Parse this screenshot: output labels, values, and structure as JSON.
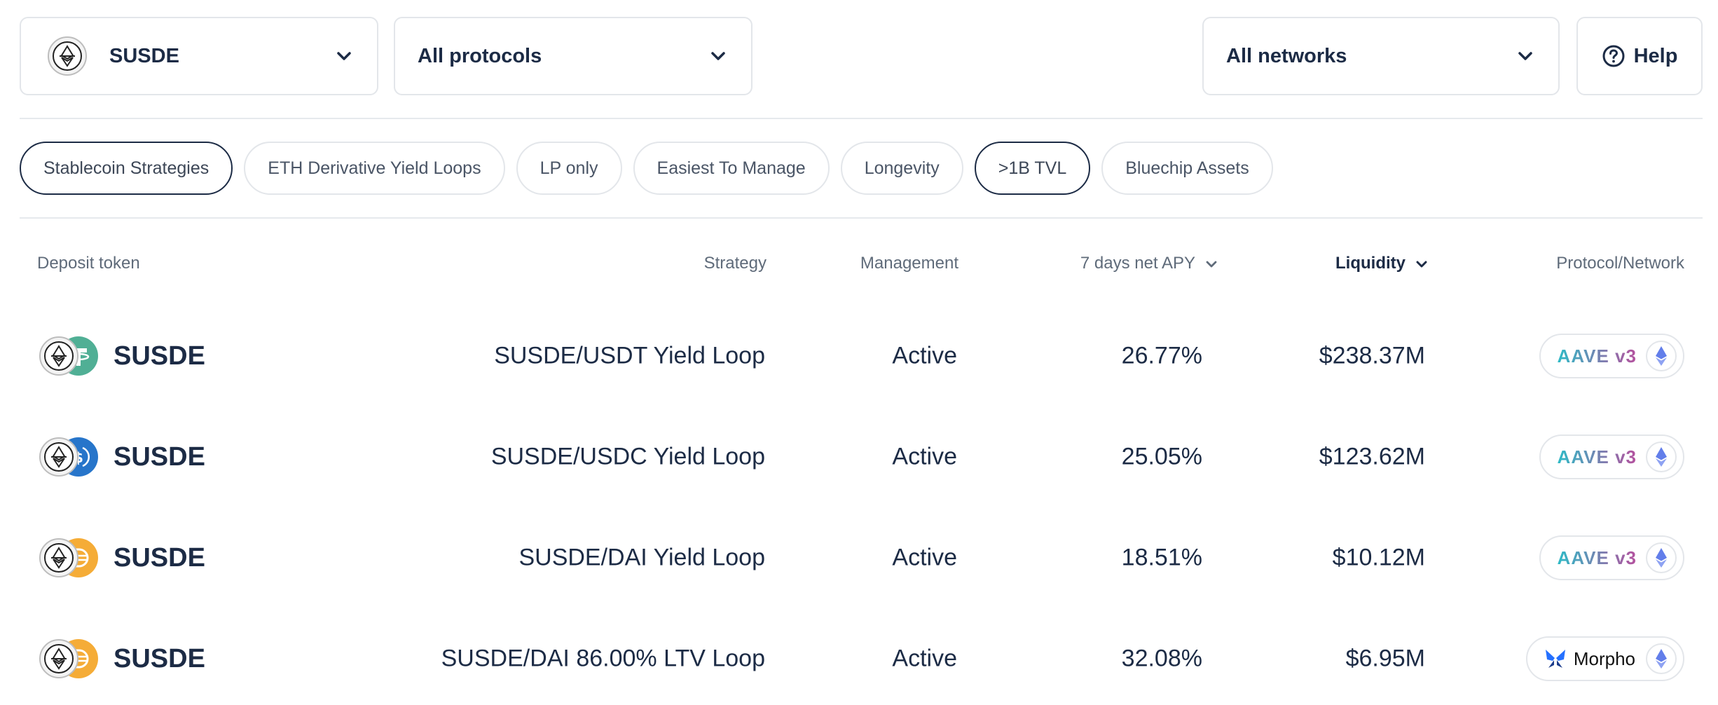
{
  "filters": {
    "token": "SUSDE",
    "protocol": "All protocols",
    "network": "All networks",
    "help": "Help"
  },
  "pills": [
    {
      "label": "Stablecoin Strategies",
      "active": true
    },
    {
      "label": "ETH Derivative Yield Loops",
      "active": false
    },
    {
      "label": "LP only",
      "active": false
    },
    {
      "label": "Easiest To Manage",
      "active": false
    },
    {
      "label": "Longevity",
      "active": false
    },
    {
      "label": ">1B TVL",
      "active": true
    },
    {
      "label": "Bluechip Assets",
      "active": false
    }
  ],
  "table": {
    "headers": {
      "deposit_token": "Deposit token",
      "strategy": "Strategy",
      "management": "Management",
      "apy": "7 days net APY",
      "liquidity": "Liquidity",
      "protocol": "Protocol/Network"
    },
    "rows": [
      {
        "token": "SUSDE",
        "pair_icon": "usdt-icon",
        "strategy": "SUSDE/USDT Yield Loop",
        "management": "Active",
        "apy": "26.77%",
        "liquidity": "$238.37M",
        "protocol": "AAVE v3",
        "network_icon": "ethereum-icon"
      },
      {
        "token": "SUSDE",
        "pair_icon": "usdc-icon",
        "strategy": "SUSDE/USDC Yield Loop",
        "management": "Active",
        "apy": "25.05%",
        "liquidity": "$123.62M",
        "protocol": "AAVE v3",
        "network_icon": "ethereum-icon"
      },
      {
        "token": "SUSDE",
        "pair_icon": "dai-icon",
        "strategy": "SUSDE/DAI Yield Loop",
        "management": "Active",
        "apy": "18.51%",
        "liquidity": "$10.12M",
        "protocol": "AAVE v3",
        "network_icon": "ethereum-icon"
      },
      {
        "token": "SUSDE",
        "pair_icon": "dai-icon",
        "strategy": "SUSDE/DAI 86.00% LTV Loop",
        "management": "Active",
        "apy": "32.08%",
        "liquidity": "$6.95M",
        "protocol": "Morpho",
        "network_icon": "ethereum-icon"
      }
    ]
  },
  "colors": {
    "text_primary": "#1c2b45",
    "text_muted": "#5f6b7a",
    "border": "#e3e6ea",
    "usdt": "#50af95",
    "usdc": "#2775ca",
    "dai": "#f5ac37",
    "ethereum": "#627eea",
    "morpho": "#2470ff"
  }
}
